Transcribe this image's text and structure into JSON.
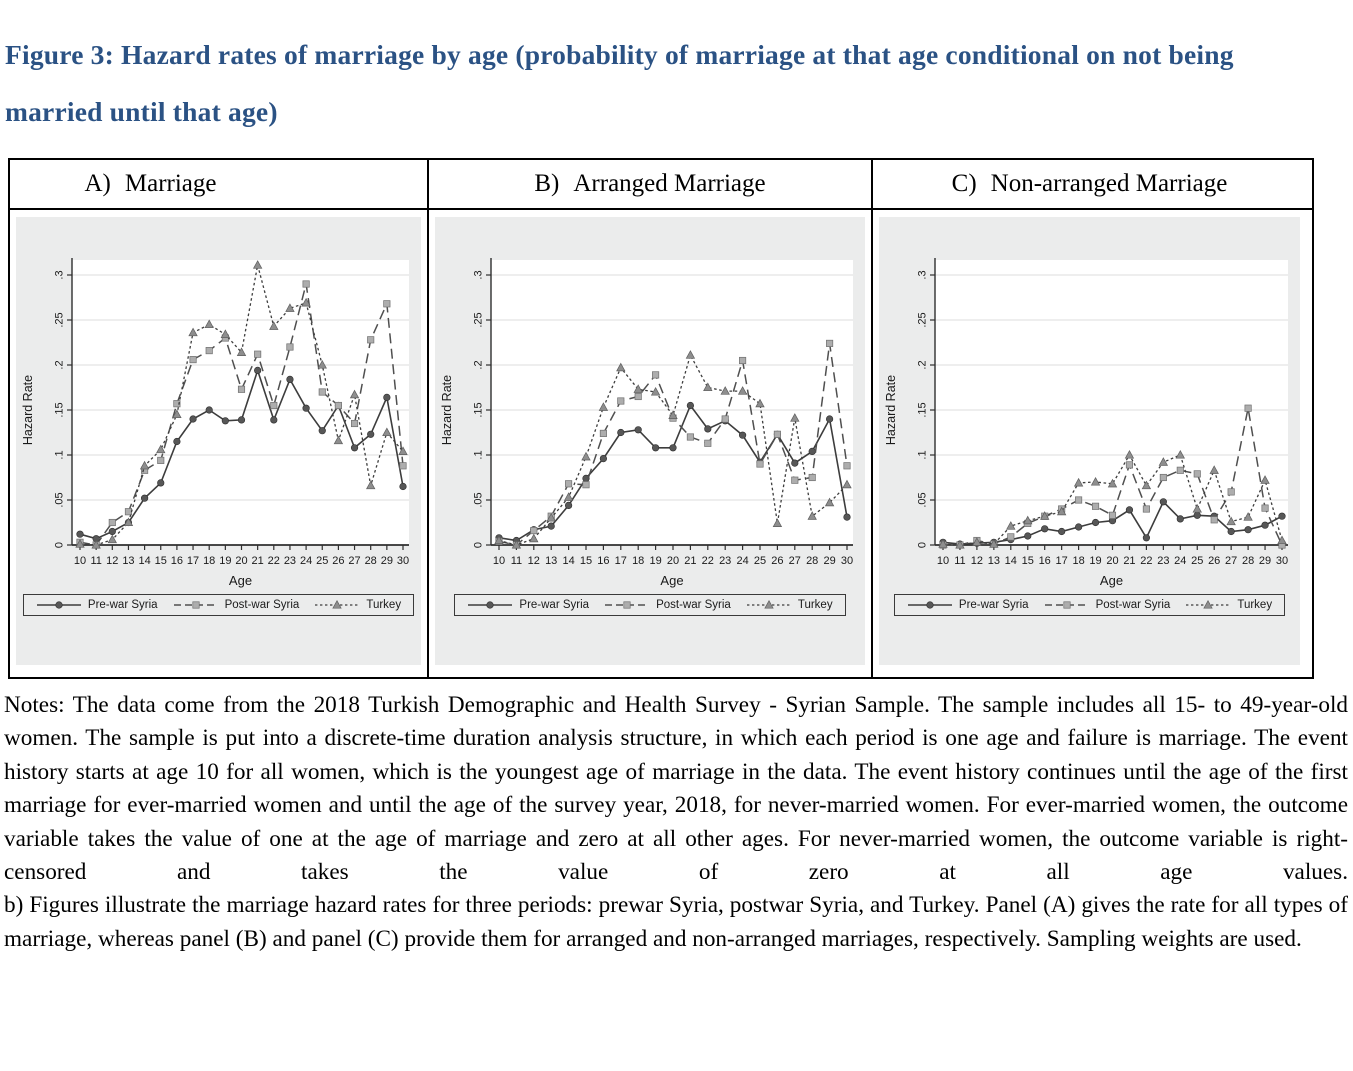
{
  "title": {
    "text": "Figure 3: Hazard rates of marriage by age (probability of marriage at that age conditional on not being married until that age)",
    "color": "#2b5284"
  },
  "panels": [
    {
      "label": "A)",
      "name": "Marriage"
    },
    {
      "label": "B)",
      "name": "Arranged Marriage"
    },
    {
      "label": "C)",
      "name": "Non-arranged Marriage"
    }
  ],
  "chart_data": [
    {
      "type": "line",
      "panel": "A",
      "title": "Marriage",
      "x": [
        10,
        11,
        12,
        13,
        14,
        15,
        16,
        17,
        18,
        19,
        20,
        21,
        22,
        23,
        24,
        25,
        26,
        27,
        28,
        29,
        30
      ],
      "xlabel": "Age",
      "ylabel": "Hazard Rate",
      "ylim": [
        0,
        0.32
      ],
      "yticks": [
        0,
        0.05,
        0.1,
        0.15,
        0.2,
        0.25,
        0.3
      ],
      "ytick_labels": [
        "0",
        ".05",
        ".1",
        ".15",
        ".2",
        ".25",
        ".3"
      ],
      "grid": true,
      "legend_position": "bottom",
      "series": [
        {
          "name": "Pre-war Syria",
          "line_style": "solid",
          "marker": "circle",
          "values": [
            0.012,
            0.007,
            0.015,
            0.025,
            0.052,
            0.069,
            0.115,
            0.14,
            0.15,
            0.138,
            0.139,
            0.194,
            0.139,
            0.184,
            0.152,
            0.127,
            0.155,
            0.108,
            0.123,
            0.164,
            0.065
          ]
        },
        {
          "name": "Post-war Syria",
          "line_style": "dash",
          "marker": "square",
          "values": [
            0.003,
            0.0,
            0.025,
            0.037,
            0.083,
            0.094,
            0.157,
            0.206,
            0.216,
            0.23,
            0.173,
            0.212,
            0.155,
            0.22,
            0.29,
            0.17,
            0.155,
            0.135,
            0.228,
            0.268,
            0.088
          ]
        },
        {
          "name": "Turkey",
          "line_style": "dot",
          "marker": "triangle",
          "values": [
            0.001,
            0.0,
            0.006,
            0.025,
            0.088,
            0.106,
            0.145,
            0.236,
            0.245,
            0.234,
            0.214,
            0.311,
            0.243,
            0.263,
            0.269,
            0.2,
            0.116,
            0.167,
            0.066,
            0.125,
            0.104
          ]
        }
      ]
    },
    {
      "type": "line",
      "panel": "B",
      "title": "Arranged Marriage",
      "x": [
        10,
        11,
        12,
        13,
        14,
        15,
        16,
        17,
        18,
        19,
        20,
        21,
        22,
        23,
        24,
        25,
        26,
        27,
        28,
        29,
        30
      ],
      "xlabel": "Age",
      "ylabel": "Hazard Rate",
      "ylim": [
        0,
        0.32
      ],
      "yticks": [
        0,
        0.05,
        0.1,
        0.15,
        0.2,
        0.25,
        0.3
      ],
      "ytick_labels": [
        "0",
        ".05",
        ".1",
        ".15",
        ".2",
        ".25",
        ".3"
      ],
      "grid": true,
      "legend_position": "bottom",
      "series": [
        {
          "name": "Pre-war Syria",
          "line_style": "solid",
          "marker": "circle",
          "values": [
            0.008,
            0.005,
            0.017,
            0.021,
            0.044,
            0.074,
            0.096,
            0.125,
            0.128,
            0.108,
            0.108,
            0.155,
            0.129,
            0.138,
            0.122,
            0.092,
            0.123,
            0.091,
            0.104,
            0.14,
            0.031
          ]
        },
        {
          "name": "Post-war Syria",
          "line_style": "dash",
          "marker": "square",
          "values": [
            0.004,
            0.0,
            0.016,
            0.032,
            0.068,
            0.067,
            0.124,
            0.16,
            0.165,
            0.189,
            0.141,
            0.12,
            0.113,
            0.14,
            0.205,
            0.09,
            0.123,
            0.072,
            0.075,
            0.224,
            0.088
          ]
        },
        {
          "name": "Turkey",
          "line_style": "dot",
          "marker": "triangle",
          "values": [
            0.005,
            0.0,
            0.007,
            0.03,
            0.053,
            0.098,
            0.153,
            0.197,
            0.173,
            0.17,
            0.144,
            0.211,
            0.175,
            0.171,
            0.171,
            0.157,
            0.024,
            0.141,
            0.032,
            0.047,
            0.067
          ]
        }
      ]
    },
    {
      "type": "line",
      "panel": "C",
      "title": "Non-arranged Marriage",
      "x": [
        10,
        11,
        12,
        13,
        14,
        15,
        16,
        17,
        18,
        19,
        20,
        21,
        22,
        23,
        24,
        25,
        26,
        27,
        28,
        29,
        30
      ],
      "xlabel": "Age",
      "ylabel": "Hazard Rate",
      "ylim": [
        0,
        0.32
      ],
      "yticks": [
        0,
        0.05,
        0.1,
        0.15,
        0.2,
        0.25,
        0.3
      ],
      "ytick_labels": [
        "0",
        ".05",
        ".1",
        ".15",
        ".2",
        ".25",
        ".3"
      ],
      "grid": true,
      "legend_position": "bottom",
      "series": [
        {
          "name": "Pre-war Syria",
          "line_style": "solid",
          "marker": "circle",
          "values": [
            0.003,
            0.001,
            0.002,
            0.003,
            0.006,
            0.01,
            0.018,
            0.015,
            0.02,
            0.025,
            0.027,
            0.039,
            0.008,
            0.048,
            0.029,
            0.033,
            0.032,
            0.015,
            0.017,
            0.022,
            0.032
          ]
        },
        {
          "name": "Post-war Syria",
          "line_style": "dash",
          "marker": "square",
          "values": [
            0.0,
            0.0,
            0.005,
            0.001,
            0.009,
            0.024,
            0.032,
            0.04,
            0.05,
            0.043,
            0.033,
            0.089,
            0.04,
            0.075,
            0.083,
            0.079,
            0.028,
            0.059,
            0.152,
            0.041,
            0.0
          ]
        },
        {
          "name": "Turkey",
          "line_style": "dot",
          "marker": "triangle",
          "values": [
            0.001,
            0.0,
            0.003,
            0.001,
            0.021,
            0.027,
            0.032,
            0.037,
            0.069,
            0.07,
            0.068,
            0.1,
            0.066,
            0.092,
            0.1,
            0.04,
            0.083,
            0.026,
            0.031,
            0.072,
            0.005
          ]
        }
      ]
    }
  ],
  "notes": {
    "para1": "Notes: The data come from the 2018 Turkish Demographic and Health Survey - Syrian Sample. The sample includes all 15- to 49-year-old women. The sample is put into a discrete-time duration analysis structure, in which each period is one age and failure is marriage. The event history starts at age 10 for all women, which is the youngest age of marriage in the data. The event history continues until the age of the first marriage for ever-married women and until the age of the survey year, 2018, for never-married women. For ever-married women, the outcome variable takes the value of one at the age of marriage and zero at all other ages. For never-married women, the outcome variable is right-censored and takes the value of zero at all age values.",
    "para2": "b) Figures illustrate the marriage hazard rates for three periods: prewar Syria, postwar Syria, and Turkey. Panel (A) gives the rate for all types of marriage, whereas panel (B) and panel (C) provide them for arranged and non-arranged marriages, respectively. Sampling weights are used."
  }
}
